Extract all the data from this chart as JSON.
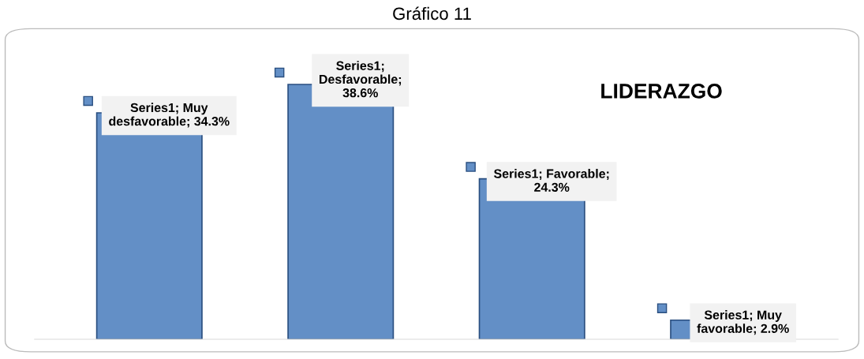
{
  "chart_data": {
    "type": "bar",
    "title": "Gráfico 11",
    "subtitle": "LIDERAZGO",
    "categories": [
      null,
      null,
      null,
      null
    ],
    "series": [
      {
        "color": "#638fc6",
        "values": [
          34.3,
          38.6,
          24.3,
          2.9
        ],
        "value_labels": [
          "Series1; Muy\ndesfavorable; 34.3%",
          "Series1;\nDesfavorable;\n38.6%",
          "Series1; Favorable;\n24.3%",
          "Series1; Muy\nfavorable; 2.9%"
        ]
      }
    ],
    "grid": false,
    "legend": false
  }
}
